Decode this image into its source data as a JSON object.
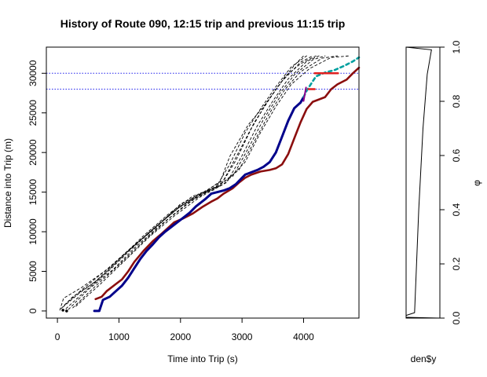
{
  "chart_data": [
    {
      "type": "line",
      "title": "History of Route 090, 12:15 trip and previous 11:15 trip",
      "xlabel": "Time into Trip (s)",
      "ylabel": "Distance into Trip (m)",
      "xlim": [
        -180,
        4900
      ],
      "ylim": [
        -900,
        33300
      ],
      "x_ticks": [
        0,
        1000,
        2000,
        3000,
        4000
      ],
      "y_ticks": [
        0,
        5000,
        10000,
        15000,
        20000,
        25000,
        30000
      ],
      "x_tick_labels": [
        "0",
        "1000",
        "2000",
        "3000",
        "4000"
      ],
      "y_tick_labels": [
        "0",
        "5000",
        "10000",
        "15000",
        "20000",
        "25000",
        "30000"
      ],
      "grid": false,
      "reference_lines": [
        {
          "y": 28000,
          "color": "#2222ee",
          "style": "dotted"
        },
        {
          "y": 30000,
          "color": "#2222ee",
          "style": "dotted"
        }
      ],
      "series": [
        {
          "color": "#000000",
          "style": "dashed",
          "width": 0.9,
          "points": [
            [
              40,
              100
            ],
            [
              100,
              1600
            ],
            [
              400,
              3000
            ],
            [
              800,
              5200
            ],
            [
              1200,
              8000
            ],
            [
              1600,
              10500
            ],
            [
              2000,
              13500
            ],
            [
              2400,
              15000
            ],
            [
              2650,
              16400
            ],
            [
              2800,
              19500
            ],
            [
              3100,
              23500
            ],
            [
              3350,
              25800
            ],
            [
              3600,
              28500
            ],
            [
              3850,
              31000
            ],
            [
              4000,
              32200
            ]
          ]
        },
        {
          "color": "#000000",
          "style": "dashed",
          "width": 0.9,
          "points": [
            [
              60,
              300
            ],
            [
              250,
              1800
            ],
            [
              600,
              3600
            ],
            [
              1000,
              6500
            ],
            [
              1400,
              9500
            ],
            [
              1800,
              12200
            ],
            [
              2200,
              14500
            ],
            [
              2550,
              15300
            ],
            [
              2800,
              18500
            ],
            [
              3050,
              22500
            ],
            [
              3300,
              25500
            ],
            [
              3550,
              28300
            ],
            [
              3800,
              30800
            ],
            [
              4050,
              32200
            ]
          ]
        },
        {
          "color": "#000000",
          "style": "dashed",
          "width": 0.9,
          "points": [
            [
              90,
              500
            ],
            [
              350,
              2200
            ],
            [
              700,
              4200
            ],
            [
              1100,
              7200
            ],
            [
              1500,
              10000
            ],
            [
              1900,
              12700
            ],
            [
              2300,
              14800
            ],
            [
              2650,
              15800
            ],
            [
              2900,
              19000
            ],
            [
              3150,
              23000
            ],
            [
              3400,
              26300
            ],
            [
              3650,
              29000
            ],
            [
              3950,
              31400
            ],
            [
              4150,
              32200
            ]
          ]
        },
        {
          "color": "#000000",
          "style": "dashed",
          "width": 0.9,
          "points": [
            [
              140,
              300
            ],
            [
              450,
              2500
            ],
            [
              800,
              4800
            ],
            [
              1200,
              7800
            ],
            [
              1600,
              10600
            ],
            [
              2000,
              13200
            ],
            [
              2400,
              15000
            ],
            [
              2750,
              16200
            ],
            [
              3000,
              19600
            ],
            [
              3250,
              23400
            ],
            [
              3500,
              26500
            ],
            [
              3750,
              29300
            ],
            [
              4050,
              31500
            ],
            [
              4250,
              32200
            ]
          ]
        },
        {
          "color": "#000000",
          "style": "dashed",
          "width": 0.9,
          "points": [
            [
              180,
              200
            ],
            [
              500,
              2700
            ],
            [
              900,
              5200
            ],
            [
              1300,
              8300
            ],
            [
              1700,
              11000
            ],
            [
              2100,
              13500
            ],
            [
              2500,
              15400
            ],
            [
              2850,
              17000
            ],
            [
              3100,
              20500
            ],
            [
              3350,
              24200
            ],
            [
              3600,
              27300
            ],
            [
              3850,
              29800
            ],
            [
              4150,
              31700
            ],
            [
              4350,
              32200
            ]
          ]
        },
        {
          "color": "#000000",
          "style": "dashed",
          "width": 0.9,
          "points": [
            [
              250,
              400
            ],
            [
              600,
              3000
            ],
            [
              1000,
              5800
            ],
            [
              1400,
              8800
            ],
            [
              1800,
              11600
            ],
            [
              2200,
              14000
            ],
            [
              2600,
              15700
            ],
            [
              2950,
              17800
            ],
            [
              3200,
              21400
            ],
            [
              3450,
              25000
            ],
            [
              3700,
              28000
            ],
            [
              3950,
              30200
            ],
            [
              4300,
              31900
            ],
            [
              4550,
              32200
            ]
          ]
        },
        {
          "color": "#000000",
          "style": "dashed",
          "width": 0.9,
          "points": [
            [
              300,
              600
            ],
            [
              700,
              3400
            ],
            [
              1100,
              6400
            ],
            [
              1500,
              9400
            ],
            [
              1900,
              12000
            ],
            [
              2300,
              14300
            ],
            [
              2700,
              16000
            ],
            [
              3050,
              18800
            ],
            [
              3300,
              22500
            ],
            [
              3550,
              25800
            ],
            [
              3800,
              28600
            ],
            [
              4100,
              30600
            ],
            [
              4450,
              32000
            ],
            [
              4750,
              32200
            ]
          ]
        },
        {
          "color": "#000000",
          "style": "dashed",
          "width": 0.9,
          "points": [
            [
              120,
              800
            ],
            [
              400,
              2700
            ],
            [
              750,
              4900
            ],
            [
              1150,
              7600
            ],
            [
              1550,
              10300
            ],
            [
              1950,
              12900
            ],
            [
              2350,
              14900
            ],
            [
              2700,
              16500
            ],
            [
              2950,
              20100
            ],
            [
              3200,
              23800
            ],
            [
              3450,
              26800
            ],
            [
              3700,
              29600
            ],
            [
              3950,
              31200
            ],
            [
              4200,
              32200
            ]
          ]
        },
        {
          "color": "#8b0e0e",
          "style": "solid",
          "width": 2.6,
          "points": [
            [
              620,
              1500
            ],
            [
              720,
              1800
            ],
            [
              800,
              2500
            ],
            [
              950,
              3400
            ],
            [
              1050,
              4000
            ],
            [
              1150,
              5000
            ],
            [
              1250,
              6200
            ],
            [
              1400,
              7600
            ],
            [
              1550,
              8800
            ],
            [
              1700,
              9800
            ],
            [
              1900,
              11200
            ],
            [
              2050,
              11700
            ],
            [
              2200,
              12300
            ],
            [
              2350,
              13100
            ],
            [
              2500,
              13800
            ],
            [
              2600,
              14200
            ],
            [
              2700,
              14800
            ],
            [
              2850,
              15500
            ],
            [
              2950,
              16200
            ],
            [
              3050,
              16800
            ],
            [
              3150,
              17200
            ],
            [
              3300,
              17600
            ],
            [
              3450,
              17800
            ],
            [
              3550,
              18000
            ],
            [
              3650,
              18500
            ],
            [
              3750,
              19800
            ],
            [
              3850,
              21800
            ],
            [
              3950,
              23800
            ],
            [
              4050,
              25500
            ],
            [
              4150,
              26400
            ],
            [
              4250,
              26700
            ],
            [
              4350,
              27000
            ],
            [
              4450,
              28000
            ],
            [
              4550,
              28600
            ],
            [
              4700,
              29200
            ],
            [
              4800,
              30000
            ],
            [
              4900,
              30700
            ]
          ]
        },
        {
          "color": "#00008b",
          "style": "solid",
          "width": 3.0,
          "points": [
            [
              600,
              0
            ],
            [
              680,
              0
            ],
            [
              740,
              1400
            ],
            [
              850,
              1800
            ],
            [
              950,
              2500
            ],
            [
              1050,
              3200
            ],
            [
              1150,
              4200
            ],
            [
              1250,
              5400
            ],
            [
              1350,
              6600
            ],
            [
              1450,
              7600
            ],
            [
              1550,
              8400
            ],
            [
              1650,
              9300
            ],
            [
              1750,
              10000
            ],
            [
              1850,
              10600
            ],
            [
              1950,
              11200
            ],
            [
              2050,
              11800
            ],
            [
              2150,
              12400
            ],
            [
              2250,
              13200
            ],
            [
              2400,
              14100
            ],
            [
              2500,
              14800
            ],
            [
              2600,
              15000
            ],
            [
              2700,
              15200
            ],
            [
              2800,
              15500
            ],
            [
              2900,
              16000
            ],
            [
              3000,
              16800
            ],
            [
              3050,
              17200
            ],
            [
              3150,
              17500
            ],
            [
              3250,
              17800
            ],
            [
              3350,
              18200
            ],
            [
              3450,
              18800
            ],
            [
              3550,
              20000
            ],
            [
              3650,
              22000
            ],
            [
              3750,
              24000
            ],
            [
              3850,
              25600
            ],
            [
              3950,
              26300
            ],
            [
              4000,
              27000
            ]
          ]
        },
        {
          "color": "#00a0a0",
          "style": "dashed",
          "width": 2.6,
          "points": [
            [
              4000,
              27000
            ],
            [
              4050,
              27800
            ],
            [
              4100,
              28400
            ],
            [
              4200,
              29600
            ],
            [
              4350,
              30100
            ],
            [
              4500,
              30400
            ],
            [
              4650,
              30900
            ],
            [
              4800,
              31500
            ],
            [
              4900,
              32000
            ]
          ]
        }
      ],
      "markers": [
        {
          "type": "segment",
          "color": "#e02020",
          "x0": 4080,
          "x1": 4180,
          "y": 28000,
          "width": 2.5
        },
        {
          "type": "segment",
          "color": "#e02020",
          "x0": 4180,
          "x1": 4560,
          "y": 30000,
          "width": 2.5
        },
        {
          "type": "segment",
          "color": "#8b008b",
          "x0": 4000,
          "x1": 4040,
          "y0": 26500,
          "y1": 28200,
          "width": 2
        },
        {
          "type": "point",
          "color": "#000000",
          "x": 90,
          "y": 100
        },
        {
          "type": "point",
          "color": "#000000",
          "x": 150,
          "y": 0
        }
      ]
    },
    {
      "type": "line",
      "title": "",
      "xlabel": "den$y",
      "ylabel": "φ",
      "ylim": [
        0,
        1
      ],
      "y_ticks": [
        0,
        0.2,
        0.4,
        0.6,
        0.8,
        1.0
      ],
      "y_tick_labels": [
        "0.0",
        "0.2",
        "0.4",
        "0.6",
        "0.8",
        "1.0"
      ],
      "y_axis_side": "right",
      "series": [
        {
          "color": "#000000",
          "style": "solid",
          "width": 1,
          "points_density_vs_phi": [
            [
              0.0,
              0.0
            ],
            [
              0.0,
              0.01
            ],
            [
              0.002,
              0.02
            ],
            [
              0.003,
              0.4
            ],
            [
              0.004,
              0.7
            ],
            [
              0.005,
              0.9
            ],
            [
              0.006,
              0.99
            ],
            [
              0.0,
              1.0
            ]
          ]
        }
      ]
    }
  ]
}
